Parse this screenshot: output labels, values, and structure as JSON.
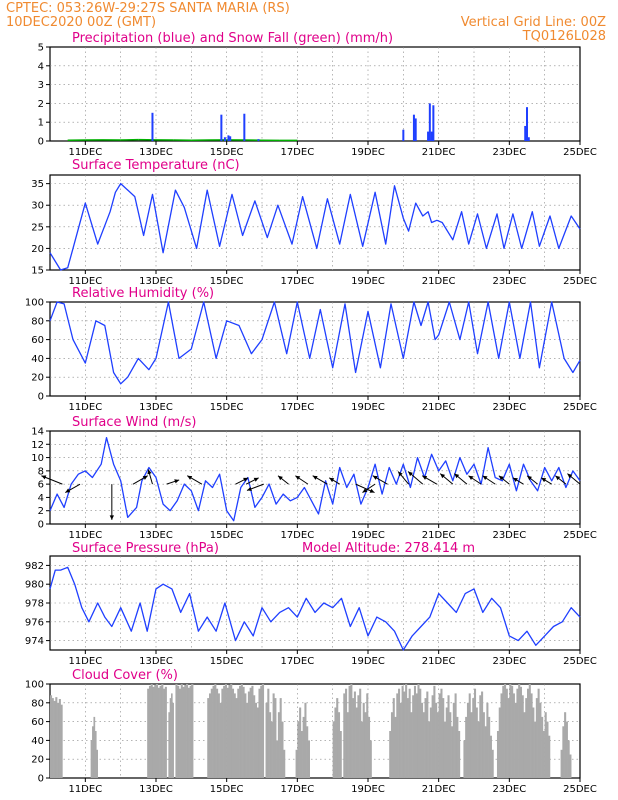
{
  "header": {
    "left_line1": "CPTEC:   053:26W-29:27S   SANTA MARIA (RS)",
    "left_line2": "10DEC2020 00Z (GMT)",
    "right_line1": "Vertical Grid Line: 00Z",
    "right_line2": "TQ0126L028"
  },
  "colors": {
    "series": "#1f3fff",
    "snow": "#00b000",
    "cloud": "#a9a9a9",
    "title": "#e0008a",
    "header": "#f08a30",
    "grid": "#888888"
  },
  "chart_data": [
    {
      "id": "precip",
      "type": "bar",
      "title": "Precipitation (blue) and Snow Fall (green) (mm/h)",
      "ylim": [
        0,
        5
      ],
      "yticks": [
        0,
        1,
        2,
        3,
        4,
        5
      ],
      "xlim": [
        10.0,
        25.0
      ],
      "xticks": [
        "11DEC",
        "13DEC",
        "15DEC",
        "17DEC",
        "19DEC",
        "21DEC",
        "23DEC",
        "25DEC"
      ],
      "grid": true,
      "series": [
        {
          "x": [
            12.9,
            14.85,
            14.95,
            15.05,
            15.1,
            15.5,
            15.9,
            20.0,
            20.3,
            20.35,
            20.7,
            20.75,
            20.8,
            20.85,
            23.45,
            23.5,
            23.55
          ],
          "values": [
            1.5,
            1.4,
            0.2,
            0.3,
            0.25,
            1.45,
            0.1,
            0.6,
            1.4,
            1.2,
            0.5,
            2.0,
            0.5,
            1.9,
            0.8,
            1.8,
            0.2
          ]
        },
        {
          "x": [
            10.5,
            11.0,
            11.5,
            12.0,
            12.5,
            13.0,
            13.5,
            14.0,
            14.5,
            15.0,
            15.5,
            16.0,
            16.5,
            17.0
          ],
          "values": [
            0.04,
            0.05,
            0.06,
            0.05,
            0.07,
            0.06,
            0.05,
            0.04,
            0.05,
            0.06,
            0.05,
            0.04,
            0.03,
            0.03
          ]
        }
      ]
    },
    {
      "id": "temp",
      "type": "line",
      "title": "Surface Temperature (nC)",
      "ylim": [
        15,
        37
      ],
      "yticks": [
        15,
        20,
        25,
        30,
        35
      ],
      "xlim": [
        10.0,
        25.0
      ],
      "xticks": [
        "11DEC",
        "13DEC",
        "15DEC",
        "17DEC",
        "19DEC",
        "21DEC",
        "23DEC",
        "25DEC"
      ],
      "grid": true,
      "x": [
        10.0,
        10.15,
        10.3,
        10.5,
        10.65,
        11.0,
        11.35,
        11.7,
        11.85,
        12.0,
        12.4,
        12.65,
        12.9,
        13.2,
        13.55,
        13.8,
        14.15,
        14.45,
        14.8,
        15.15,
        15.45,
        15.8,
        16.15,
        16.45,
        16.85,
        17.15,
        17.55,
        17.85,
        18.2,
        18.5,
        18.85,
        19.2,
        19.5,
        19.75,
        20.0,
        20.15,
        20.35,
        20.55,
        20.7,
        20.8,
        20.95,
        21.1,
        21.4,
        21.65,
        21.85,
        22.1,
        22.35,
        22.65,
        22.85,
        23.1,
        23.35,
        23.65,
        23.85,
        24.15,
        24.4,
        24.75,
        25.0
      ],
      "values": [
        19.0,
        17.0,
        15.0,
        15.5,
        20.0,
        30.5,
        21.0,
        28.5,
        33.0,
        35.0,
        32.0,
        23.0,
        32.5,
        19.0,
        33.5,
        29.5,
        20.0,
        33.5,
        20.5,
        32.5,
        23.0,
        31.0,
        22.5,
        30.0,
        21.0,
        32.0,
        20.0,
        31.5,
        21.0,
        32.5,
        20.5,
        33.0,
        21.0,
        34.5,
        27.0,
        24.0,
        30.5,
        27.5,
        28.5,
        26.0,
        26.5,
        26.0,
        22.0,
        28.5,
        21.0,
        28.0,
        20.0,
        28.0,
        20.0,
        28.0,
        20.0,
        28.5,
        20.5,
        27.5,
        20.0,
        27.5,
        24.5
      ]
    },
    {
      "id": "rh",
      "type": "line",
      "title": "Relative Humidity (%)",
      "ylim": [
        0,
        100
      ],
      "yticks": [
        0,
        20,
        40,
        60,
        80,
        100
      ],
      "xlim": [
        10.0,
        25.0
      ],
      "xticks": [
        "11DEC",
        "13DEC",
        "15DEC",
        "17DEC",
        "19DEC",
        "21DEC",
        "23DEC",
        "25DEC"
      ],
      "grid": true,
      "x": [
        10.0,
        10.2,
        10.4,
        10.65,
        11.0,
        11.3,
        11.55,
        11.8,
        12.0,
        12.2,
        12.5,
        12.8,
        13.0,
        13.35,
        13.65,
        14.0,
        14.35,
        14.7,
        15.0,
        15.35,
        15.7,
        16.0,
        16.35,
        16.7,
        17.0,
        17.35,
        17.65,
        18.0,
        18.35,
        18.65,
        19.0,
        19.35,
        19.65,
        20.0,
        20.3,
        20.5,
        20.7,
        20.9,
        21.0,
        21.3,
        21.6,
        21.85,
        22.1,
        22.4,
        22.7,
        23.0,
        23.3,
        23.6,
        23.85,
        24.2,
        24.55,
        24.8,
        25.0
      ],
      "values": [
        80,
        100,
        98,
        60,
        35,
        80,
        75,
        25,
        13,
        20,
        40,
        28,
        40,
        100,
        40,
        50,
        100,
        40,
        80,
        75,
        45,
        60,
        100,
        45,
        100,
        40,
        92,
        30,
        98,
        25,
        90,
        30,
        98,
        40,
        100,
        75,
        100,
        60,
        65,
        100,
        60,
        100,
        45,
        100,
        40,
        100,
        40,
        100,
        30,
        100,
        40,
        25,
        38
      ]
    },
    {
      "id": "wind",
      "type": "line",
      "title": "Surface Wind (m/s)",
      "ylim": [
        0,
        14
      ],
      "yticks": [
        0,
        2,
        4,
        6,
        8,
        10,
        12,
        14
      ],
      "xlim": [
        10.0,
        25.0
      ],
      "xticks": [
        "11DEC",
        "13DEC",
        "15DEC",
        "17DEC",
        "19DEC",
        "21DEC",
        "23DEC",
        "25DEC"
      ],
      "grid": true,
      "x": [
        10.0,
        10.2,
        10.4,
        10.6,
        10.8,
        11.0,
        11.2,
        11.45,
        11.6,
        11.8,
        12.0,
        12.2,
        12.45,
        12.6,
        12.8,
        13.0,
        13.2,
        13.4,
        13.6,
        13.8,
        14.0,
        14.2,
        14.4,
        14.6,
        14.8,
        15.0,
        15.2,
        15.4,
        15.6,
        15.8,
        16.0,
        16.2,
        16.4,
        16.6,
        16.8,
        17.0,
        17.2,
        17.4,
        17.6,
        17.8,
        18.0,
        18.2,
        18.4,
        18.6,
        18.8,
        19.0,
        19.2,
        19.4,
        19.6,
        19.8,
        20.0,
        20.2,
        20.4,
        20.6,
        20.8,
        21.0,
        21.2,
        21.4,
        21.6,
        21.8,
        22.0,
        22.2,
        22.4,
        22.6,
        22.8,
        23.0,
        23.2,
        23.4,
        23.6,
        23.8,
        24.0,
        24.2,
        24.4,
        24.6,
        24.8,
        25.0
      ],
      "values": [
        2.0,
        4.5,
        2.5,
        6.0,
        7.5,
        8.0,
        7.0,
        9.0,
        13.0,
        9.0,
        6.5,
        1.0,
        2.5,
        6.5,
        8.5,
        7.0,
        3.0,
        2.0,
        3.5,
        6.0,
        5.0,
        2.0,
        6.5,
        5.5,
        7.5,
        2.0,
        0.5,
        5.5,
        7.0,
        2.5,
        4.0,
        6.0,
        3.0,
        4.5,
        3.5,
        4.0,
        5.5,
        3.5,
        1.5,
        6.5,
        3.0,
        8.5,
        5.5,
        7.5,
        3.0,
        5.5,
        9.0,
        4.5,
        8.5,
        6.0,
        9.0,
        5.5,
        10.0,
        7.0,
        10.5,
        8.0,
        9.5,
        6.5,
        10.0,
        7.5,
        9.0,
        6.0,
        11.5,
        7.0,
        6.5,
        9.0,
        5.0,
        9.0,
        6.5,
        5.0,
        8.5,
        6.5,
        8.5,
        5.5,
        8.0,
        6.5
      ],
      "vectors": {
        "x": [
          10.35,
          10.85,
          11.75,
          12.35,
          12.9,
          13.3,
          14.3,
          15.25,
          15.55,
          16.05,
          16.75,
          17.3,
          17.85,
          18.2,
          18.65,
          19.2,
          19.55,
          20.15,
          20.55,
          20.95,
          21.4,
          21.8,
          22.2,
          22.6,
          23.0,
          23.4,
          23.8,
          24.2,
          24.6,
          25.0
        ],
        "u": [
          -5.0,
          -3.5,
          0.0,
          3.5,
          -1.0,
          3.0,
          -3.5,
          3.0,
          3.0,
          -4.0,
          -2.5,
          -3.0,
          -3.5,
          -2.5,
          4.5,
          -3.0,
          -3.5,
          -2.5,
          -3.5,
          -3.5,
          -3.0,
          -3.0,
          -3.0,
          -3.0,
          -2.5,
          -2.5,
          -2.5,
          -2.5,
          -2.5,
          -3.0
        ],
        "v": [
          2.0,
          -2.0,
          -8.5,
          2.0,
          3.5,
          1.0,
          2.0,
          1.5,
          1.5,
          -1.5,
          2.0,
          2.0,
          2.0,
          1.5,
          -2.0,
          -2.0,
          2.0,
          3.0,
          3.0,
          2.0,
          2.5,
          2.5,
          2.0,
          2.0,
          2.0,
          1.5,
          2.0,
          1.5,
          2.0,
          2.5
        ]
      }
    },
    {
      "id": "pressure",
      "type": "line",
      "title": "Surface Pressure (hPa)",
      "subtitle": "Model Altitude: 278.414 m",
      "ylim": [
        973,
        983
      ],
      "yticks": [
        974,
        976,
        978,
        980,
        982
      ],
      "xlim": [
        10.0,
        25.0
      ],
      "xticks": [
        "11DEC",
        "13DEC",
        "15DEC",
        "17DEC",
        "19DEC",
        "21DEC",
        "23DEC",
        "25DEC"
      ],
      "grid": true,
      "x": [
        10.0,
        10.15,
        10.3,
        10.5,
        10.7,
        10.9,
        11.1,
        11.35,
        11.55,
        11.75,
        12.0,
        12.3,
        12.55,
        12.75,
        13.0,
        13.2,
        13.45,
        13.7,
        13.95,
        14.2,
        14.45,
        14.7,
        14.95,
        15.25,
        15.5,
        15.75,
        16.0,
        16.25,
        16.5,
        16.75,
        17.0,
        17.25,
        17.5,
        17.75,
        18.0,
        18.25,
        18.5,
        18.75,
        19.0,
        19.25,
        19.5,
        19.75,
        20.0,
        20.25,
        20.5,
        20.75,
        21.0,
        21.25,
        21.5,
        21.75,
        22.0,
        22.25,
        22.5,
        22.75,
        23.0,
        23.25,
        23.5,
        23.75,
        24.0,
        24.25,
        24.5,
        24.75,
        25.0
      ],
      "values": [
        979.5,
        981.5,
        981.5,
        981.8,
        980.0,
        977.5,
        976.0,
        978.0,
        976.5,
        975.5,
        977.5,
        975.0,
        978.0,
        975.0,
        979.5,
        980.0,
        979.5,
        977.0,
        979.0,
        975.0,
        976.5,
        975.0,
        978.0,
        974.0,
        976.0,
        974.5,
        977.5,
        976.0,
        977.0,
        977.5,
        976.5,
        978.5,
        977.0,
        978.0,
        977.5,
        978.5,
        975.5,
        977.5,
        974.5,
        976.5,
        976.0,
        975.0,
        973.0,
        974.5,
        975.5,
        976.5,
        979.0,
        978.0,
        977.0,
        979.0,
        979.5,
        977.0,
        978.5,
        977.5,
        974.5,
        974.0,
        975.0,
        973.5,
        974.5,
        975.5,
        976.0,
        977.5,
        976.5
      ]
    },
    {
      "id": "cloud",
      "type": "bar",
      "title": "Cloud Cover (%)",
      "ylim": [
        0,
        100
      ],
      "yticks": [
        0,
        20,
        40,
        60,
        80,
        100
      ],
      "xlim": [
        10.0,
        25.0
      ],
      "xticks": [
        "11DEC",
        "13DEC",
        "15DEC",
        "17DEC",
        "19DEC",
        "21DEC",
        "23DEC",
        "25DEC"
      ],
      "grid": true,
      "segments": [
        {
          "x0": 10.0,
          "x1": 10.35,
          "values": [
            88,
            85,
            82,
            86,
            80,
            84,
            78
          ]
        },
        {
          "x0": 11.15,
          "x1": 11.35,
          "values": [
            40,
            55,
            65,
            50,
            30
          ]
        },
        {
          "x0": 12.75,
          "x1": 13.3,
          "values": [
            95,
            98,
            100,
            97,
            99,
            100,
            96,
            98,
            100,
            95,
            97
          ]
        },
        {
          "x0": 13.35,
          "x1": 13.5,
          "values": [
            70,
            85,
            90,
            80
          ]
        },
        {
          "x0": 13.55,
          "x1": 14.05,
          "values": [
            100,
            98,
            95,
            100,
            97,
            99,
            100,
            96,
            98,
            100
          ]
        },
        {
          "x0": 14.45,
          "x1": 16.05,
          "values": [
            85,
            90,
            95,
            98,
            100,
            95,
            90,
            80,
            95,
            98,
            100,
            96,
            99,
            100,
            95,
            90,
            85,
            95,
            98,
            100,
            97,
            90,
            80,
            92,
            96,
            98,
            88,
            80,
            75,
            95,
            98,
            100
          ]
        },
        {
          "x0": 16.1,
          "x1": 16.65,
          "values": [
            80,
            95,
            70,
            60,
            90,
            85,
            40,
            70,
            85,
            60,
            30
          ]
        },
        {
          "x0": 16.95,
          "x1": 17.35,
          "values": [
            30,
            60,
            75,
            50,
            65,
            80,
            55,
            40
          ]
        },
        {
          "x0": 18.0,
          "x1": 18.25,
          "values": [
            60,
            75,
            85,
            70,
            50
          ]
        },
        {
          "x0": 18.3,
          "x1": 19.1,
          "values": [
            90,
            95,
            70,
            98,
            100,
            85,
            92,
            75,
            88,
            95,
            60,
            80,
            70,
            90,
            65,
            40
          ]
        },
        {
          "x0": 19.6,
          "x1": 21.6,
          "values": [
            50,
            70,
            85,
            65,
            90,
            95,
            80,
            98,
            92,
            100,
            85,
            95,
            70,
            88,
            98,
            90,
            100,
            95,
            80,
            70,
            85,
            92,
            60,
            75,
            88,
            98,
            80,
            70,
            90,
            95,
            85,
            60,
            75,
            88,
            70,
            55,
            80,
            90,
            65,
            50
          ]
        },
        {
          "x0": 21.7,
          "x1": 22.55,
          "values": [
            40,
            65,
            80,
            90,
            70,
            85,
            95,
            75,
            60,
            88,
            92,
            70,
            55,
            80,
            65,
            45,
            30
          ]
        },
        {
          "x0": 22.65,
          "x1": 24.15,
          "values": [
            50,
            75,
            90,
            98,
            100,
            95,
            85,
            100,
            98,
            90,
            80,
            95,
            100,
            97,
            88,
            70,
            85,
            95,
            100,
            90,
            75,
            60,
            85,
            95,
            80,
            65,
            50,
            70,
            60,
            45
          ]
        },
        {
          "x0": 24.45,
          "x1": 24.75,
          "values": [
            30,
            55,
            70,
            60,
            40,
            25
          ]
        }
      ]
    }
  ]
}
